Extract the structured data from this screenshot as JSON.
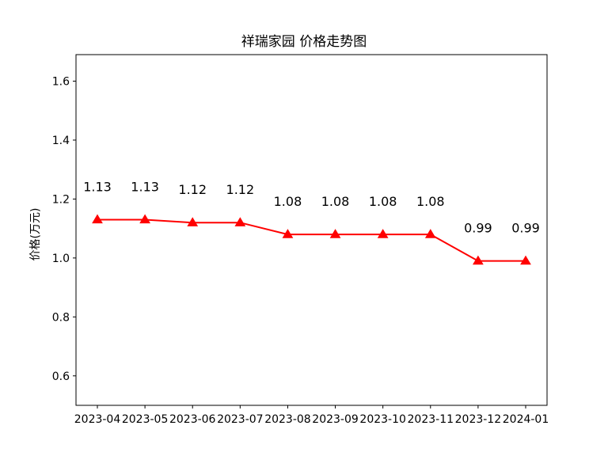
{
  "chart_data": {
    "type": "line",
    "title": "祥瑞家园 价格走势图",
    "xlabel": "",
    "ylabel": "价格(万元)",
    "categories": [
      "2023-04",
      "2023-05",
      "2023-06",
      "2023-07",
      "2023-08",
      "2023-09",
      "2023-10",
      "2023-11",
      "2023-12",
      "2024-01"
    ],
    "series": [
      {
        "values": [
          1.13,
          1.13,
          1.12,
          1.12,
          1.08,
          1.08,
          1.08,
          1.08,
          0.99,
          0.99
        ],
        "labels": [
          "1.13",
          "1.13",
          "1.12",
          "1.12",
          "1.08",
          "1.08",
          "1.08",
          "1.08",
          "0.99",
          "0.99"
        ],
        "color": "#ff0000",
        "marker": "triangle"
      }
    ],
    "ylim": [
      0.5,
      1.69
    ],
    "yticks": [
      "0.6",
      "0.8",
      "1.0",
      "1.2",
      "1.4",
      "1.6"
    ],
    "grid": false,
    "legend": "none"
  }
}
